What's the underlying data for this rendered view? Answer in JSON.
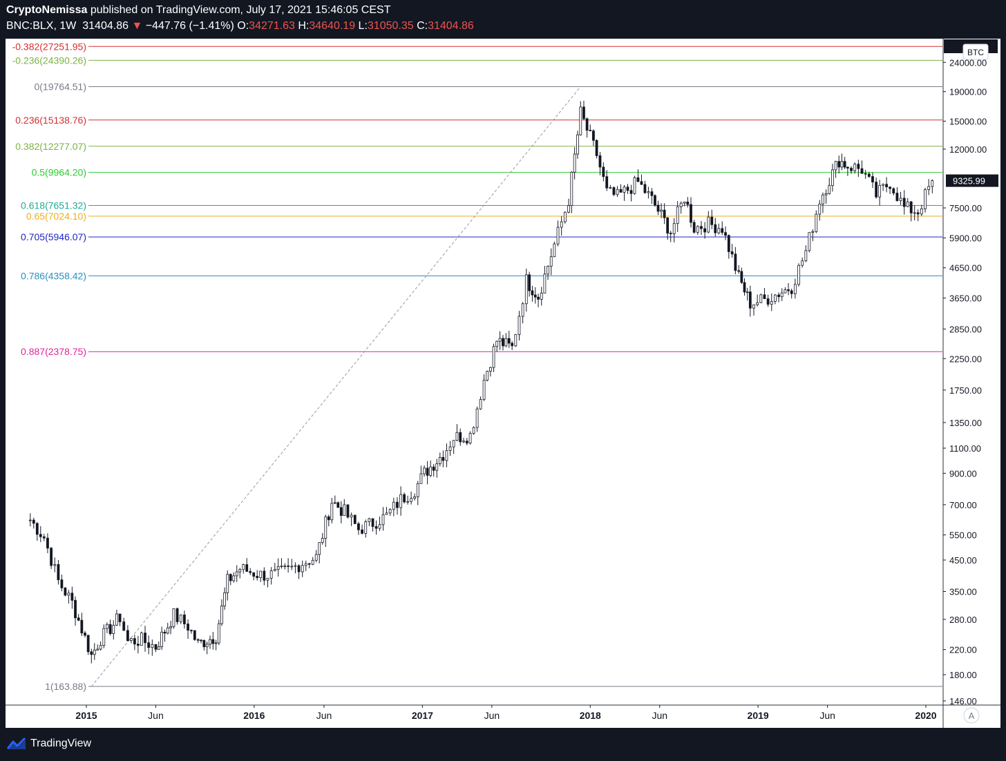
{
  "header": {
    "author": "CryptoNemissa",
    "published_text": " published on TradingView.com, July 17, 2021 15:46:05 CEST",
    "symbol": "BNC:BLX, 1W",
    "last": "31404.86",
    "arrow": "▼",
    "change": "−447.76 (−1.41%)",
    "open_label": "O:",
    "open": "34271.63",
    "high_label": "H:",
    "high": "34640.19",
    "low_label": "L:",
    "low": "31050.35",
    "close_label": "C:",
    "close": "31404.86"
  },
  "footer": {
    "brand": "TradingView",
    "auto_scale_button": "A"
  },
  "chart_data": {
    "type": "candlestick",
    "symbol": "BNC:BLX",
    "interval": "1W",
    "y_scale": "log",
    "ylim": [
      142,
      29000
    ],
    "currency_label": "BTC",
    "last_price_label": "9325.99",
    "last_price": 9325.99,
    "top_clipped_label": "1",
    "x_ticks": [
      {
        "label": "2015",
        "bold": true,
        "date": "2015-01-01"
      },
      {
        "label": "Jun",
        "bold": false,
        "date": "2015-06-01"
      },
      {
        "label": "2016",
        "bold": true,
        "date": "2016-01-01"
      },
      {
        "label": "Jun",
        "bold": false,
        "date": "2016-06-01"
      },
      {
        "label": "2017",
        "bold": true,
        "date": "2017-01-01"
      },
      {
        "label": "Jun",
        "bold": false,
        "date": "2017-06-01"
      },
      {
        "label": "2018",
        "bold": true,
        "date": "2018-01-01"
      },
      {
        "label": "Jun",
        "bold": false,
        "date": "2018-06-01"
      },
      {
        "label": "2019",
        "bold": true,
        "date": "2019-01-01"
      },
      {
        "label": "Jun",
        "bold": false,
        "date": "2019-06-01"
      },
      {
        "label": "2020",
        "bold": true,
        "date": "2020-01-01"
      }
    ],
    "y_ticks": [
      "24000.00",
      "19000.00",
      "15000.00",
      "12000.00",
      "7500.00",
      "5900.00",
      "4650.00",
      "3650.00",
      "2850.00",
      "2250.00",
      "1750.00",
      "1350.00",
      "1100.00",
      "900.00",
      "700.00",
      "550.00",
      "450.00",
      "350.00",
      "280.00",
      "220.00",
      "180.00",
      "146.00"
    ],
    "fib_levels": [
      {
        "label": "-0.382(27251.95)",
        "price": 27251.95,
        "color": "#d32f2f"
      },
      {
        "label": "-0.236(24390.26)",
        "price": 24390.26,
        "color": "#7cb342"
      },
      {
        "label": "0(19764.51)",
        "price": 19764.51,
        "color": "#787b86"
      },
      {
        "label": "0.236(15138.76)",
        "price": 15138.76,
        "color": "#d32f2f"
      },
      {
        "label": "0.382(12277.07)",
        "price": 12277.07,
        "color": "#7cb342"
      },
      {
        "label": "0.5(9964.20)",
        "price": 9964.2,
        "color": "#2ecc30"
      },
      {
        "label": "0.618(7651.32)",
        "price": 7651.32,
        "color": "#22ab94"
      },
      {
        "label": "0.65(7024.10)",
        "price": 7024.1,
        "color": "#f0ad1a"
      },
      {
        "label": "0.705(5946.07)",
        "price": 5946.07,
        "color": "#1e24c6"
      },
      {
        "label": "0.786(4358.42)",
        "price": 4358.42,
        "color": "#2a8fc2"
      },
      {
        "label": "0.887(2378.75)",
        "price": 2378.75,
        "color": "#e0249c"
      },
      {
        "label": "1(163.88)",
        "price": 163.88,
        "color": "#787b86"
      }
    ],
    "trend_line": {
      "from": {
        "date": "2015-01-12",
        "price": 163.88
      },
      "to": {
        "date": "2017-12-11",
        "price": 19764.51
      }
    },
    "series": [
      {
        "name": "BNC:BLX",
        "points": [
          {
            "date": "2014-09-01",
            "close": 620
          },
          {
            "date": "2014-10-01",
            "close": 540
          },
          {
            "date": "2014-11-01",
            "close": 380
          },
          {
            "date": "2014-12-01",
            "close": 320
          },
          {
            "date": "2015-01-12",
            "close": 210
          },
          {
            "date": "2015-02-01",
            "close": 240
          },
          {
            "date": "2015-03-15",
            "close": 285
          },
          {
            "date": "2015-04-01",
            "close": 235
          },
          {
            "date": "2015-05-01",
            "close": 237
          },
          {
            "date": "2015-06-01",
            "close": 225
          },
          {
            "date": "2015-07-10",
            "close": 290
          },
          {
            "date": "2015-08-10",
            "close": 265
          },
          {
            "date": "2015-09-01",
            "close": 230
          },
          {
            "date": "2015-10-10",
            "close": 245
          },
          {
            "date": "2015-11-04",
            "close": 380
          },
          {
            "date": "2015-12-01",
            "close": 420
          },
          {
            "date": "2016-01-15",
            "close": 400
          },
          {
            "date": "2016-02-15",
            "close": 400
          },
          {
            "date": "2016-03-15",
            "close": 415
          },
          {
            "date": "2016-04-15",
            "close": 440
          },
          {
            "date": "2016-05-15",
            "close": 460
          },
          {
            "date": "2016-06-18",
            "close": 720
          },
          {
            "date": "2016-07-15",
            "close": 660
          },
          {
            "date": "2016-08-15",
            "close": 575
          },
          {
            "date": "2016-09-15",
            "close": 605
          },
          {
            "date": "2016-10-15",
            "close": 640
          },
          {
            "date": "2016-11-15",
            "close": 730
          },
          {
            "date": "2016-12-15",
            "close": 790
          },
          {
            "date": "2017-01-05",
            "close": 900
          },
          {
            "date": "2017-02-15",
            "close": 1050
          },
          {
            "date": "2017-03-10",
            "close": 1200
          },
          {
            "date": "2017-04-15",
            "close": 1220
          },
          {
            "date": "2017-05-15",
            "close": 1900
          },
          {
            "date": "2017-06-12",
            "close": 2600
          },
          {
            "date": "2017-07-15",
            "close": 2450
          },
          {
            "date": "2017-08-15",
            "close": 4200
          },
          {
            "date": "2017-09-10",
            "close": 3700
          },
          {
            "date": "2017-10-15",
            "close": 5600
          },
          {
            "date": "2017-11-15",
            "close": 8000
          },
          {
            "date": "2017-12-11",
            "close": 16000
          },
          {
            "date": "2018-01-15",
            "close": 11500
          },
          {
            "date": "2018-02-06",
            "close": 8500
          },
          {
            "date": "2018-03-01",
            "close": 8200
          },
          {
            "date": "2018-04-15",
            "close": 9200
          },
          {
            "date": "2018-05-15",
            "close": 8000
          },
          {
            "date": "2018-06-25",
            "close": 6200
          },
          {
            "date": "2018-07-25",
            "close": 8200
          },
          {
            "date": "2018-08-15",
            "close": 6400
          },
          {
            "date": "2018-09-15",
            "close": 6600
          },
          {
            "date": "2018-10-15",
            "close": 6400
          },
          {
            "date": "2018-11-20",
            "close": 4300
          },
          {
            "date": "2018-12-15",
            "close": 3500
          },
          {
            "date": "2019-01-15",
            "close": 3600
          },
          {
            "date": "2019-02-15",
            "close": 3800
          },
          {
            "date": "2019-03-15",
            "close": 4000
          },
          {
            "date": "2019-04-15",
            "close": 5300
          },
          {
            "date": "2019-05-15",
            "close": 8000
          },
          {
            "date": "2019-06-26",
            "close": 11000
          },
          {
            "date": "2019-07-15",
            "close": 10500
          },
          {
            "date": "2019-08-15",
            "close": 10200
          },
          {
            "date": "2019-09-15",
            "close": 8300
          },
          {
            "date": "2019-10-15",
            "close": 9200
          },
          {
            "date": "2019-11-15",
            "close": 7500
          },
          {
            "date": "2019-12-15",
            "close": 7300
          },
          {
            "date": "2020-01-15",
            "close": 9326
          }
        ]
      }
    ]
  }
}
